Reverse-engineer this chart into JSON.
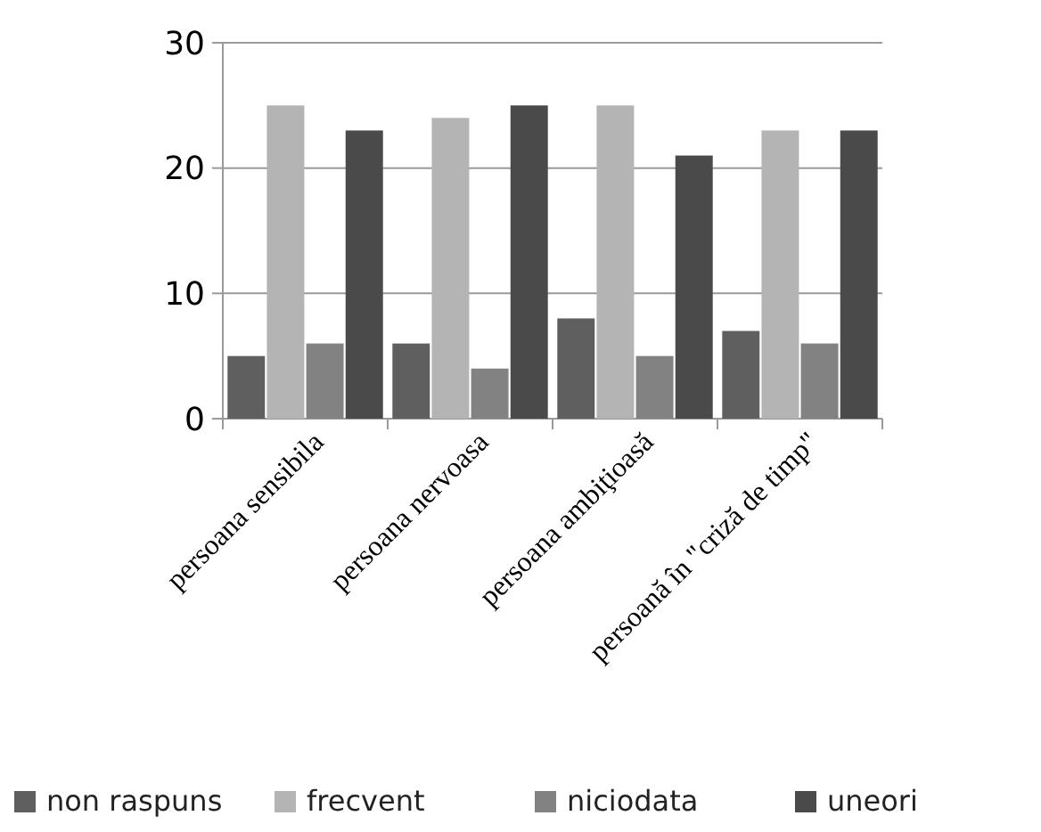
{
  "chart_data": {
    "type": "bar",
    "categories": [
      "persoana sensibila",
      "persoana nervoasa",
      "persoana ambiţioasă",
      "persoană în \"criză de timp\""
    ],
    "series": [
      {
        "name": "non raspuns",
        "color": "#5f5f5f",
        "values": [
          5,
          6,
          8,
          7
        ]
      },
      {
        "name": "frecvent",
        "color": "#b4b4b4",
        "values": [
          25,
          24,
          25,
          23
        ]
      },
      {
        "name": "niciodata",
        "color": "#828282",
        "values": [
          6,
          4,
          5,
          6
        ]
      },
      {
        "name": "uneori",
        "color": "#4a4a4a",
        "values": [
          23,
          25,
          21,
          23
        ]
      }
    ],
    "ylim": [
      0,
      30
    ],
    "yticks": [
      0,
      10,
      20,
      30
    ],
    "grid": "y",
    "legend": "bottom"
  }
}
